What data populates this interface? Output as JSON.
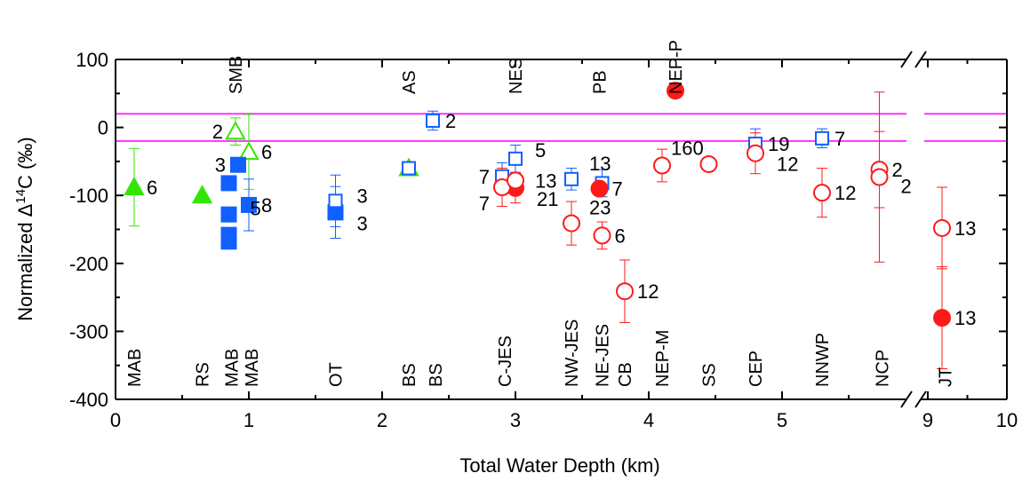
{
  "chart_data": {
    "type": "scatter",
    "xlabel": "Total Water Depth (km)",
    "ylabel": "Normalized Δ14C (‰)",
    "ylabel_parts": {
      "pre": "Normalized ",
      "delta": "Δ",
      "sup": "14",
      "post": "C (‰)"
    },
    "xlim": [
      0,
      10
    ],
    "x_break": [
      6.0,
      9.0
    ],
    "ylim": [
      -400,
      100
    ],
    "x_ticks": [
      "0",
      "1",
      "2",
      "3",
      "4",
      "5",
      "9",
      "10"
    ],
    "y_ticks": [
      "100",
      "0",
      "-100",
      "-200",
      "-300",
      "-400"
    ],
    "reference_lines": [
      20,
      -20
    ],
    "colors": {
      "green": "#33e600",
      "blue": "#1060ff",
      "red": "#ff1a1a",
      "magenta": "#ff33ff"
    },
    "series": [
      {
        "marker": "filled-triangle",
        "color": "green",
        "points": [
          {
            "x": 0.14,
            "y": -88,
            "err": 57,
            "label": "6"
          },
          {
            "x": 0.65,
            "y": -100
          }
        ]
      },
      {
        "marker": "open-triangle",
        "color": "green",
        "points": [
          {
            "x": 0.9,
            "y": -6,
            "err": 20,
            "label": "2",
            "label_side": "left"
          },
          {
            "x": 1.0,
            "y": -36,
            "err": 55,
            "label": "6"
          },
          {
            "x": 2.2,
            "y": -60
          }
        ]
      },
      {
        "marker": "filled-square",
        "color": "blue",
        "points": [
          {
            "x": 0.92,
            "y": -55,
            "label": "3",
            "label_side": "left"
          },
          {
            "x": 0.85,
            "y": -82,
            "label": "5",
            "label_offset": [
              10,
              28
            ]
          },
          {
            "x": 0.85,
            "y": -128
          },
          {
            "x": 0.85,
            "y": -158
          },
          {
            "x": 0.85,
            "y": -168
          },
          {
            "x": 1.0,
            "y": -114,
            "err": 38,
            "label": "8"
          },
          {
            "x": 1.65,
            "y": -125,
            "err": 38,
            "label": "3",
            "label_offset": [
              10,
              12
            ]
          }
        ]
      },
      {
        "marker": "open-square",
        "color": "blue",
        "points": [
          {
            "x": 2.38,
            "y": 10,
            "err": 14,
            "label": "2"
          },
          {
            "x": 2.2,
            "y": -60
          },
          {
            "x": 1.65,
            "y": -108,
            "err": 38,
            "label": "3",
            "label_offset": [
              10,
              -6
            ]
          },
          {
            "x": 3.0,
            "y": -46,
            "err": 20,
            "label": "5",
            "label_offset": [
              8,
              -10
            ]
          },
          {
            "x": 2.9,
            "y": -72,
            "err": 20,
            "label": "7",
            "label_side": "left"
          },
          {
            "x": 3.42,
            "y": -76,
            "err": 16,
            "label": "13",
            "label_offset": [
              6,
              -18
            ]
          },
          {
            "x": 3.65,
            "y": -82,
            "err": 20
          },
          {
            "x": 4.8,
            "y": -24,
            "err": 22,
            "label": "19"
          },
          {
            "x": 5.3,
            "y": -16,
            "err": 14,
            "label": "7"
          }
        ]
      },
      {
        "marker": "filled-circle",
        "color": "red",
        "points": [
          {
            "x": 4.2,
            "y": 54
          },
          {
            "x": 3.0,
            "y": -89,
            "err": 22,
            "label": "21",
            "label_offset": [
              10,
              12
            ]
          },
          {
            "x": 3.63,
            "y": -90,
            "label": "7"
          },
          {
            "x": 9.18,
            "y": -280,
            "err": 75,
            "label": "13"
          }
        ]
      },
      {
        "marker": "open-circle",
        "color": "red",
        "points": [
          {
            "x": 2.9,
            "y": -88,
            "err": 28,
            "label": "7",
            "label_side": "left",
            "label_offset": [
              0,
              18
            ]
          },
          {
            "x": 3.0,
            "y": -78,
            "label": "13",
            "label_offset": [
              8,
              0
            ]
          },
          {
            "x": 3.42,
            "y": -141,
            "err": 32,
            "label": "23",
            "label_offset": [
              6,
              -18
            ]
          },
          {
            "x": 3.65,
            "y": -159,
            "err": 20,
            "label": "6"
          },
          {
            "x": 3.82,
            "y": -241,
            "err": 46,
            "label": "12"
          },
          {
            "x": 4.1,
            "y": -56,
            "err": 24,
            "label": "160",
            "label_offset": [
              -4,
              -20
            ]
          },
          {
            "x": 4.45,
            "y": -54
          },
          {
            "x": 4.8,
            "y": -38,
            "err": 30,
            "label": "12",
            "label_offset": [
              10,
              12
            ]
          },
          {
            "x": 5.3,
            "y": -96,
            "err": 36,
            "label": "12"
          },
          {
            "x": 5.73,
            "y": -62,
            "err": 56,
            "label": "2"
          },
          {
            "x": 5.73,
            "y": -73,
            "err": 125,
            "label": "2",
            "label_offset": [
              10,
              10
            ]
          },
          {
            "x": 9.18,
            "y": -148,
            "err": 60,
            "label": "13"
          }
        ]
      }
    ],
    "site_labels_top": [
      {
        "text": "SMB",
        "x": 0.9
      },
      {
        "text": "AS",
        "x": 2.2
      },
      {
        "text": "NES",
        "x": 3.0
      },
      {
        "text": "PB",
        "x": 3.63
      },
      {
        "text": "NEP-P",
        "x": 4.2
      }
    ],
    "site_labels_bottom": [
      {
        "text": "MAB",
        "x": 0.14
      },
      {
        "text": "RS",
        "x": 0.65
      },
      {
        "text": "MAB",
        "x": 0.87
      },
      {
        "text": "MAB",
        "x": 1.02
      },
      {
        "text": "OT",
        "x": 1.65
      },
      {
        "text": "BS",
        "x": 2.2
      },
      {
        "text": "BS",
        "x": 2.4
      },
      {
        "text": "C-JES",
        "x": 2.92
      },
      {
        "text": "NW-JES",
        "x": 3.42
      },
      {
        "text": "NE-JES",
        "x": 3.65
      },
      {
        "text": "CB",
        "x": 3.82
      },
      {
        "text": "NEP-M",
        "x": 4.1
      },
      {
        "text": "SS",
        "x": 4.45
      },
      {
        "text": "CEP",
        "x": 4.8
      },
      {
        "text": "NNWP",
        "x": 5.3
      },
      {
        "text": "NCP",
        "x": 5.75
      },
      {
        "text": "JT",
        "x": 9.22
      }
    ]
  }
}
